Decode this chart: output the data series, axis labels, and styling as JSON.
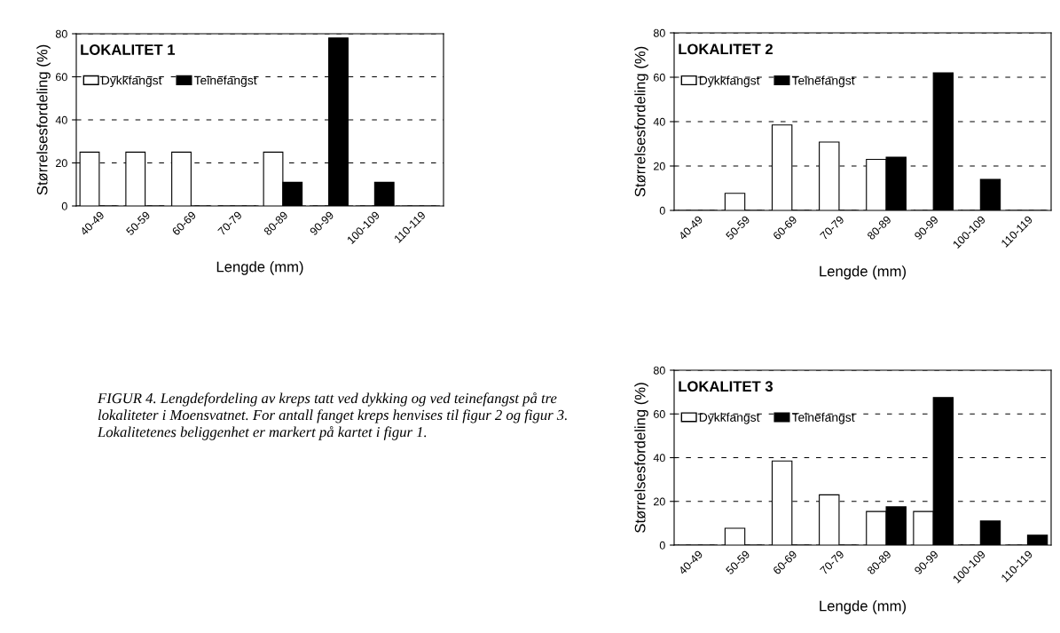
{
  "chart_data": [
    {
      "type": "bar",
      "title": "LOKALITET 1",
      "xlabel": "Lengde (mm)",
      "ylabel": "Størrelsesfordeling (%)",
      "categories": [
        "40-49",
        "50-59",
        "60-69",
        "70-79",
        "80-89",
        "90-99",
        "100-109",
        "110-119"
      ],
      "series": [
        {
          "name": "Dykkfangst",
          "color": "#ffffff",
          "values": [
            25,
            25,
            25,
            0,
            25,
            0,
            0,
            0
          ]
        },
        {
          "name": "Teinefangst",
          "color": "#000000",
          "values": [
            0,
            0,
            0,
            0,
            11,
            78,
            11,
            0
          ]
        }
      ],
      "ylim": [
        0,
        80
      ],
      "yticks": [
        0,
        20,
        40,
        60,
        80
      ],
      "grid": "y",
      "legend": "top left",
      "annotations": [
        "FIGUR 4. Lengdefordeling av kreps tatt ved dykking og ved teinefangst på tre lokaliteter i Moensvatnet. For antall fanget kreps henvises til figur 2 og figur 3. Lokalitetenes beliggenhet er markert på kartet i figur 1."
      ]
    },
    {
      "type": "bar",
      "title": "LOKALITET 2",
      "xlabel": "Lengde (mm)",
      "ylabel": "Størrelsesfordeling (%)",
      "categories": [
        "40-49",
        "50-59",
        "60-69",
        "70-79",
        "80-89",
        "90-99",
        "100-109",
        "110-119"
      ],
      "series": [
        {
          "name": "Dykkfangst",
          "color": "#ffffff",
          "values": [
            0,
            7.7,
            38.5,
            30.8,
            23,
            0,
            0,
            0
          ]
        },
        {
          "name": "Teinefangst",
          "color": "#000000",
          "values": [
            0,
            0,
            0,
            0,
            24,
            62,
            14,
            0
          ]
        }
      ],
      "ylim": [
        0,
        80
      ],
      "yticks": [
        0,
        20,
        40,
        60,
        80
      ],
      "grid": "y",
      "legend": "top left"
    },
    {
      "type": "bar",
      "title": "LOKALITET 3",
      "xlabel": "Lengde (mm)",
      "ylabel": "Størrelsesfordeling (%)",
      "categories": [
        "40-49",
        "50-59",
        "60-69",
        "70-79",
        "80-89",
        "90-99",
        "100-109",
        "110-119"
      ],
      "series": [
        {
          "name": "Dykkfangst",
          "color": "#ffffff",
          "values": [
            0,
            7.7,
            38.5,
            23,
            15.4,
            15.4,
            0,
            0
          ]
        },
        {
          "name": "Teinefangst",
          "color": "#000000",
          "values": [
            0,
            0,
            0,
            0,
            17.5,
            67.5,
            11,
            4.5
          ]
        }
      ],
      "ylim": [
        0,
        80
      ],
      "yticks": [
        0,
        20,
        40,
        60,
        80
      ],
      "grid": "y",
      "legend": "top left"
    }
  ]
}
